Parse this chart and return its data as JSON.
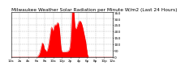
{
  "title": "Milwaukee Weather Solar Radiation per Minute W/m2 (Last 24 Hours)",
  "title_fontsize": 4.2,
  "background_color": "#ffffff",
  "plot_bg_color": "#ffffff",
  "bar_color": "#ff0000",
  "bar_edge_color": "#dd0000",
  "grid_color": "#bbbbbb",
  "grid_style": "--",
  "num_points": 1440,
  "ylim": [
    0,
    350
  ],
  "yticks": [
    0,
    50,
    100,
    150,
    200,
    250,
    300,
    350
  ],
  "ytick_fontsize": 3.2,
  "xtick_fontsize": 3.0,
  "x_tick_labels": [
    "12a",
    "2a",
    "4a",
    "6a",
    "8a",
    "10a",
    "12p",
    "2p",
    "4p",
    "6p",
    "8p",
    "10p",
    "12a"
  ]
}
